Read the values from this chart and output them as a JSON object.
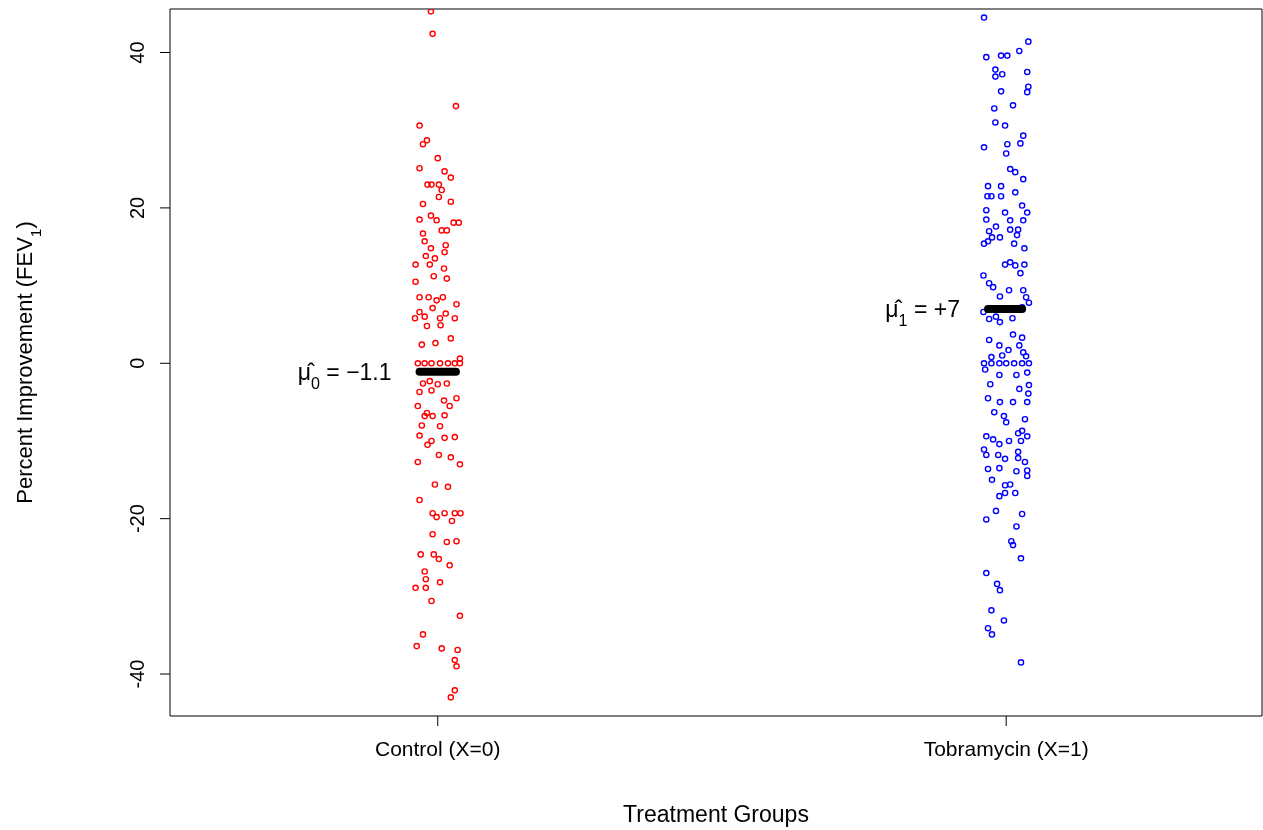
{
  "chart_data": {
    "type": "scatter",
    "xlabel": "Treatment Groups",
    "ylabel": "Percent Improvement (FEV$_{1}$)",
    "xlim": [
      -0.471,
      1.45
    ],
    "xticks": [
      {
        "value": 0,
        "label": "Control (X=0)"
      },
      {
        "value": 1,
        "label": "Tobramycin (X=1)"
      }
    ],
    "ylim": [
      -45.4,
      45.6
    ],
    "yticks": [
      -40,
      -20,
      0,
      20,
      40
    ],
    "marker": "circle",
    "annotations": [
      {
        "text": "μ̂$_{0}$ = −1.1",
        "x": -0.032,
        "y": -1.1
      },
      {
        "text": "μ̂$_{1}$ = +7",
        "x": 0.968,
        "y": 7
      }
    ],
    "series": [
      {
        "color": "#ff0000",
        "x": [
          -0.012,
          -0.009,
          0.032,
          -0.032,
          -0.019,
          -0.026,
          0,
          -0.032,
          0.012,
          0.023,
          -0.018,
          -0.011,
          0.002,
          0.007,
          0.002,
          0.023,
          -0.026,
          -0.032,
          -0.012,
          -0.002,
          0.028,
          0.037,
          -0.026,
          0.007,
          0.016,
          -0.023,
          -0.012,
          0.014,
          -0.021,
          -0.005,
          0.012,
          -0.039,
          -0.014,
          0.011,
          -0.039,
          -0.007,
          0.016,
          -0.032,
          -0.016,
          -0.002,
          0.009,
          0.033,
          -0.032,
          -0.009,
          0.014,
          -0.04,
          -0.023,
          0.004,
          0.03,
          -0.019,
          0.005,
          -0.028,
          -0.004,
          0.023,
          0.039,
          -0.035,
          -0.023,
          -0.011,
          0.004,
          0.018,
          0.03,
          0.039,
          -0.026,
          -0.014,
          0,
          0.016,
          -0.032,
          -0.011,
          0.033,
          0.011,
          -0.035,
          -0.019,
          0.021,
          -0.023,
          -0.009,
          0.012,
          -0.028,
          0.004,
          0.03,
          -0.032,
          -0.011,
          0.012,
          -0.018,
          0.023,
          -0.035,
          0.002,
          0.039,
          -0.005,
          0.018,
          -0.032,
          -0.009,
          0.012,
          0.03,
          0.04,
          -0.002,
          0.025,
          -0.009,
          0.016,
          0.033,
          -0.03,
          -0.007,
          0.002,
          0.021,
          -0.023,
          -0.021,
          0.004,
          -0.039,
          -0.021,
          -0.011,
          0.039,
          -0.026,
          -0.037,
          0.007,
          0.035,
          0.03,
          0.033,
          0.03,
          0.023
        ],
        "values": [
          45.3,
          42.4,
          33.1,
          30.6,
          28.7,
          28.2,
          26.4,
          25.1,
          24.7,
          23.9,
          23.0,
          23.0,
          23.0,
          22.3,
          21.4,
          20.8,
          20.5,
          18.5,
          19.0,
          18.4,
          18.1,
          18.1,
          16.7,
          17.1,
          17.1,
          15.7,
          14.8,
          15.2,
          13.8,
          13.5,
          14.3,
          12.7,
          12.7,
          12.2,
          10.5,
          11.2,
          10.9,
          8.5,
          8.5,
          8.1,
          8.5,
          7.6,
          6.6,
          7.1,
          6.4,
          5.8,
          6.0,
          5.8,
          5.8,
          4.8,
          4.9,
          2.4,
          2.6,
          3.2,
          0.6,
          0,
          0,
          0,
          0,
          0,
          0,
          0,
          -2.6,
          -2.3,
          -2.7,
          -2.6,
          -3.7,
          -3.5,
          -4.5,
          -4.8,
          -5.5,
          -6.4,
          -5.5,
          -6.8,
          -6.8,
          -6.7,
          -8.0,
          -8.1,
          -9.5,
          -9.3,
          -10.0,
          -9.6,
          -10.5,
          -12.1,
          -12.7,
          -11.8,
          -13.0,
          -15.6,
          -15.9,
          -17.6,
          -19.3,
          -19.3,
          -19.3,
          -19.3,
          -19.8,
          -20.3,
          -22.0,
          -23.0,
          -22.9,
          -24.6,
          -24.6,
          -25.2,
          -26.0,
          -26.8,
          -27.8,
          -28.2,
          -28.9,
          -28.9,
          -30.6,
          -32.5,
          -34.9,
          -36.4,
          -36.7,
          -36.9,
          -38.2,
          -39.0,
          -42.1,
          -43.0
        ]
      },
      {
        "color": "#0000ff",
        "x": [
          0.961,
          1.039,
          0.965,
          0.991,
          1.002,
          1.023,
          0.981,
          0.981,
          0.993,
          1.037,
          1.039,
          1.037,
          0.991,
          0.979,
          1.012,
          0.981,
          0.998,
          0.961,
          1.002,
          1.025,
          1.03,
          1.0,
          1.007,
          1.016,
          1.03,
          0.968,
          0.991,
          0.967,
          0.974,
          0.991,
          1.016,
          1.028,
          0.965,
          0.965,
          0.998,
          1.007,
          1.037,
          1.007,
          1.021,
          0.982,
          1.03,
          0.97,
          0.961,
          0.968,
          0.975,
          0.989,
          1.019,
          1.014,
          1.032,
          1.007,
          1.032,
          1.025,
          1.016,
          0.96,
          0.97,
          0.998,
          0.977,
          0.989,
          1.005,
          1.03,
          0.96,
          0.982,
          1.028,
          1.035,
          1.04,
          0.97,
          1.011,
          0.989,
          1.012,
          1.028,
          0.97,
          0.988,
          1.023,
          1.004,
          1.03,
          0.993,
          0.974,
          1.035,
          0.961,
          0.974,
          0.988,
          1.0,
          1.014,
          1.028,
          1.04,
          0.963,
          0.988,
          1.018,
          1.037,
          0.972,
          1.023,
          1.04,
          1.039,
          0.968,
          0.989,
          1.012,
          1.037,
          0.979,
          0.996,
          1.033,
          1.0,
          1.028,
          0.965,
          1.021,
          1.037,
          0.977,
          0.988,
          1.005,
          1.026,
          0.961,
          0.965,
          1.021,
          0.986,
          1.021,
          0.998,
          1.033,
          0.968,
          0.988,
          1.018,
          1.037,
          1.037,
          0.975,
          0.998,
          1.007,
          1.016,
          0.988,
          0.998,
          0.982,
          1.028,
          0.965,
          1.018,
          1.009,
          1.012,
          1.026,
          0.965,
          0.984,
          0.989,
          0.974,
          0.996,
          0.968,
          0.975,
          1.026
        ],
        "values": [
          44.5,
          41.4,
          39.4,
          39.6,
          39.6,
          40.2,
          37.8,
          36.9,
          37.2,
          37.5,
          35.6,
          34.9,
          35.0,
          32.8,
          33.2,
          31.0,
          30.6,
          27.8,
          28.2,
          28.3,
          29.3,
          27.0,
          25.0,
          24.6,
          23.7,
          22.8,
          22.8,
          21.5,
          21.5,
          21.5,
          22.0,
          20.3,
          19.7,
          18.5,
          19.4,
          18.4,
          19.4,
          17.2,
          17.2,
          17.6,
          18.4,
          17.0,
          15.4,
          15.7,
          16.2,
          16.2,
          16.5,
          15.4,
          14.8,
          13.0,
          12.7,
          11.6,
          12.6,
          11.3,
          10.3,
          12.7,
          9.8,
          8.6,
          9.4,
          9.4,
          6.6,
          6.0,
          7.2,
          8.5,
          7.8,
          5.7,
          5.8,
          5.3,
          3.7,
          3.3,
          3.0,
          2.3,
          2.3,
          1.7,
          1.4,
          1.0,
          0.8,
          0.9,
          0,
          0,
          0,
          0,
          0,
          0,
          0,
          -0.8,
          -1.5,
          -1.5,
          -1.2,
          -2.7,
          -3.3,
          -2.8,
          -3.9,
          -4.5,
          -5.0,
          -5.0,
          -5.0,
          -6.3,
          -6.8,
          -7.2,
          -7.6,
          -8.7,
          -9.4,
          -9.0,
          -9.4,
          -9.8,
          -10.4,
          -10.0,
          -10.0,
          -11.1,
          -11.8,
          -11.4,
          -11.8,
          -12.2,
          -12.3,
          -12.7,
          -13.6,
          -13.5,
          -13.9,
          -14.5,
          -13.8,
          -15.0,
          -15.7,
          -15.6,
          -16.7,
          -17.1,
          -16.7,
          -19.0,
          -19.4,
          -20.1,
          -21.0,
          -22.9,
          -23.4,
          -25.1,
          -27.0,
          -28.4,
          -29.2,
          -31.8,
          -33.1,
          -34.1,
          -34.9,
          -38.5
        ]
      },
      {
        "type": "line",
        "marker": "none",
        "color": "#000000",
        "x": [
          -0.032,
          0.032
        ],
        "values": [
          -1.1,
          -1.1
        ]
      },
      {
        "type": "line",
        "marker": "none",
        "color": "#000000",
        "x": [
          0.968,
          1.028
        ],
        "values": [
          7,
          7
        ]
      }
    ]
  }
}
